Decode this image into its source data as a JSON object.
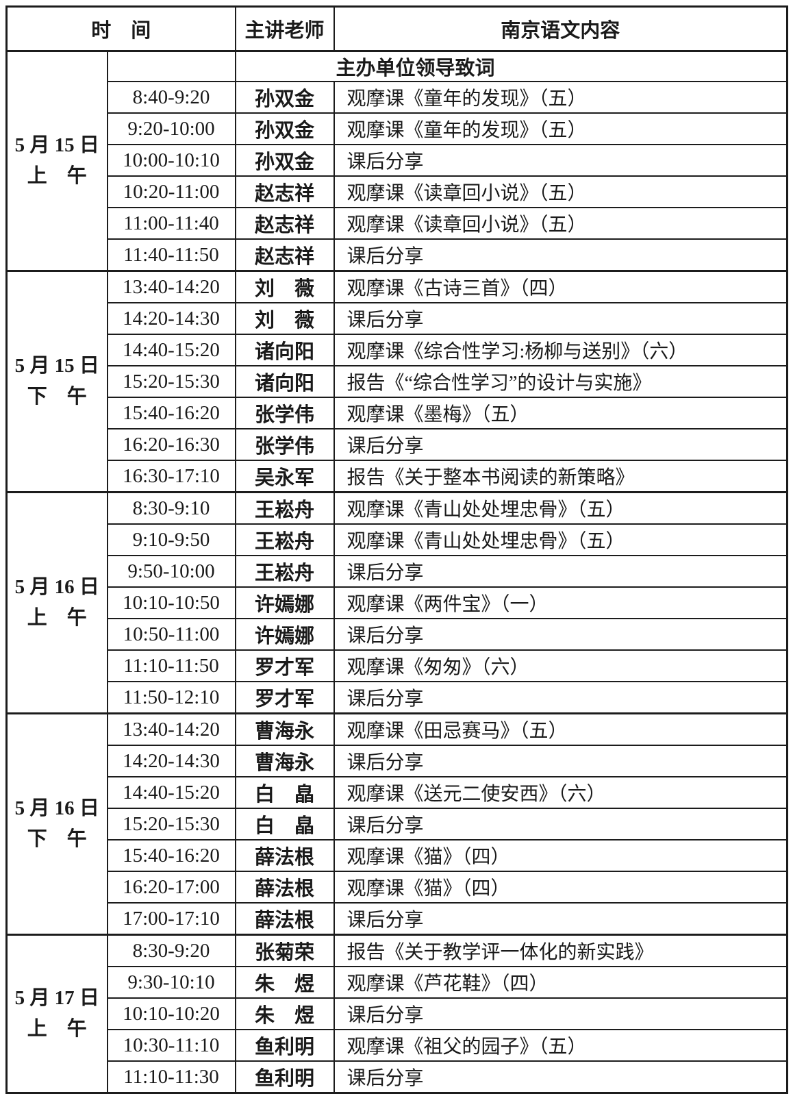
{
  "table": {
    "header": {
      "time": "时　间",
      "teacher": "主讲老师",
      "content": "南京语文内容"
    },
    "groups": [
      {
        "date": [
          "5 月 15 日",
          "上　午"
        ],
        "opening": "主办单位领导致词",
        "rows": [
          {
            "time": "8:40-9:20",
            "teacher": "孙双金",
            "content": "观摩课《童年的发现》（五）"
          },
          {
            "time": "9:20-10:00",
            "teacher": "孙双金",
            "content": "观摩课《童年的发现》（五）"
          },
          {
            "time": "10:00-10:10",
            "teacher": "孙双金",
            "content": "课后分享"
          },
          {
            "time": "10:20-11:00",
            "teacher": "赵志祥",
            "content": "观摩课《读章回小说》（五）"
          },
          {
            "time": "11:00-11:40",
            "teacher": "赵志祥",
            "content": "观摩课《读章回小说》（五）"
          },
          {
            "time": "11:40-11:50",
            "teacher": "赵志祥",
            "content": "课后分享"
          }
        ]
      },
      {
        "date": [
          "5 月 15 日",
          "下　午"
        ],
        "rows": [
          {
            "time": "13:40-14:20",
            "teacher": "刘　薇",
            "content": "观摩课《古诗三首》（四）"
          },
          {
            "time": "14:20-14:30",
            "teacher": "刘　薇",
            "content": "课后分享"
          },
          {
            "time": "14:40-15:20",
            "teacher": "诸向阳",
            "content": "观摩课《综合性学习:杨柳与送别》（六）"
          },
          {
            "time": "15:20-15:30",
            "teacher": "诸向阳",
            "content": "报告《“综合性学习”的设计与实施》"
          },
          {
            "time": "15:40-16:20",
            "teacher": "张学伟",
            "content": "观摩课《墨梅》（五）"
          },
          {
            "time": "16:20-16:30",
            "teacher": "张学伟",
            "content": "课后分享"
          },
          {
            "time": "16:30-17:10",
            "teacher": "吴永军",
            "content": "报告《关于整本书阅读的新策略》"
          }
        ]
      },
      {
        "date": [
          "5 月 16 日",
          "上　午"
        ],
        "rows": [
          {
            "time": "8:30-9:10",
            "teacher": "王崧舟",
            "content": "观摩课《青山处处埋忠骨》（五）"
          },
          {
            "time": "9:10-9:50",
            "teacher": "王崧舟",
            "content": "观摩课《青山处处埋忠骨》（五）"
          },
          {
            "time": "9:50-10:00",
            "teacher": "王崧舟",
            "content": "课后分享"
          },
          {
            "time": "10:10-10:50",
            "teacher": "许嫣娜",
            "content": "观摩课《两件宝》（一）"
          },
          {
            "time": "10:50-11:00",
            "teacher": "许嫣娜",
            "content": "课后分享"
          },
          {
            "time": "11:10-11:50",
            "teacher": "罗才军",
            "content": "观摩课《匆匆》（六）"
          },
          {
            "time": "11:50-12:10",
            "teacher": "罗才军",
            "content": "课后分享"
          }
        ]
      },
      {
        "date": [
          "5 月 16 日",
          "下　午"
        ],
        "rows": [
          {
            "time": "13:40-14:20",
            "teacher": "曹海永",
            "content": "观摩课《田忌赛马》（五）"
          },
          {
            "time": "14:20-14:30",
            "teacher": "曹海永",
            "content": "课后分享"
          },
          {
            "time": "14:40-15:20",
            "teacher": "白　皛",
            "content": "观摩课《送元二使安西》（六）"
          },
          {
            "time": "15:20-15:30",
            "teacher": "白　皛",
            "content": "课后分享"
          },
          {
            "time": "15:40-16:20",
            "teacher": "薛法根",
            "content": "观摩课《猫》（四）"
          },
          {
            "time": "16:20-17:00",
            "teacher": "薛法根",
            "content": "观摩课《猫》（四）"
          },
          {
            "time": "17:00-17:10",
            "teacher": "薛法根",
            "content": "课后分享"
          }
        ]
      },
      {
        "date": [
          "5 月 17 日",
          "上　午"
        ],
        "rows": [
          {
            "time": "8:30-9:20",
            "teacher": "张菊荣",
            "content": "报告《关于教学评一体化的新实践》"
          },
          {
            "time": "9:30-10:10",
            "teacher": "朱　煜",
            "content": "观摩课《芦花鞋》（四）"
          },
          {
            "time": "10:10-10:20",
            "teacher": "朱　煜",
            "content": "课后分享"
          },
          {
            "time": "10:30-11:10",
            "teacher": "鱼利明",
            "content": "观摩课《祖父的园子》（五）"
          },
          {
            "time": "11:10-11:30",
            "teacher": "鱼利明",
            "content": "课后分享"
          }
        ]
      }
    ]
  }
}
